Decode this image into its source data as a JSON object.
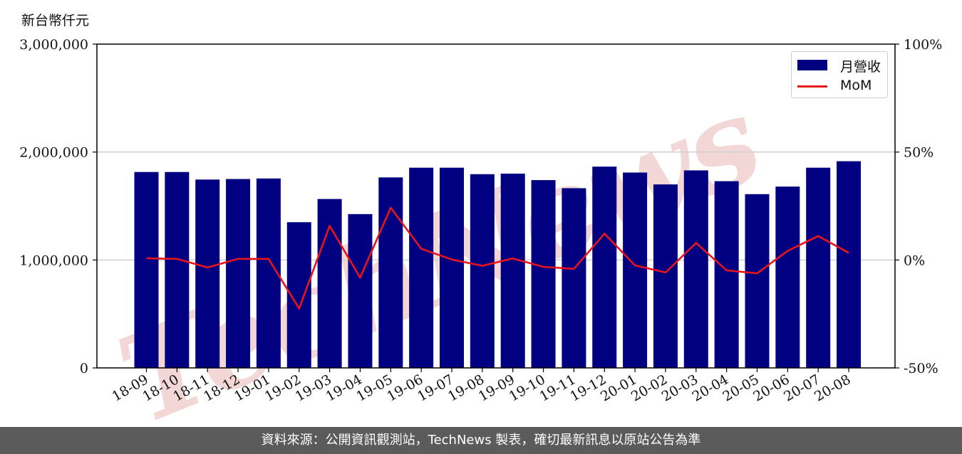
{
  "unit_label": "新台幣仟元",
  "footer": "資料來源：公開資訊觀測站，TechNews 製表，確切最新訊息以原站公告為準",
  "watermark": "TechNews",
  "colors": {
    "bar": "#000080",
    "line": "#e8141c",
    "footer_bg": "#5b5b5b",
    "watermark": "#f3d6d6"
  },
  "chart_data": {
    "type": "bar",
    "categories": [
      "18-09",
      "18-10",
      "18-11",
      "18-12",
      "19-01",
      "19-02",
      "19-03",
      "19-04",
      "19-05",
      "19-06",
      "19-07",
      "19-08",
      "19-09",
      "19-10",
      "19-11",
      "19-12",
      "20-01",
      "20-02",
      "20-03",
      "20-04",
      "20-05",
      "20-06",
      "20-07",
      "20-08"
    ],
    "series": [
      {
        "name": "月營收",
        "type": "bar",
        "axis": "left",
        "values": [
          1815000,
          1815000,
          1745000,
          1750000,
          1755000,
          1350000,
          1565000,
          1425000,
          1765000,
          1855000,
          1855000,
          1795000,
          1800000,
          1740000,
          1665000,
          1865000,
          1810000,
          1700000,
          1830000,
          1730000,
          1610000,
          1680000,
          1855000,
          1915000
        ]
      },
      {
        "name": "MoM",
        "type": "line",
        "axis": "right",
        "unit": "%",
        "values": [
          0.8,
          0.5,
          -3.5,
          0.5,
          0.5,
          -22.5,
          15.8,
          -8.2,
          24.2,
          5.2,
          0.2,
          -2.7,
          0.7,
          -3.2,
          -4.1,
          12.2,
          -2.5,
          -5.8,
          7.9,
          -4.8,
          -6.2,
          4.2,
          11.1,
          3.3
        ]
      }
    ],
    "left_axis": {
      "ylim": [
        0,
        3000000
      ],
      "ticks": [
        "0",
        "1,000,000",
        "2,000,000",
        "3,000,000"
      ],
      "tick_values": [
        0,
        1000000,
        2000000,
        3000000
      ]
    },
    "right_axis": {
      "ylim": [
        -50,
        100
      ],
      "ticks": [
        "-50%",
        "0%",
        "50%",
        "100%"
      ],
      "tick_values": [
        -50,
        0,
        50,
        100
      ]
    },
    "grid": "horizontal",
    "legend": {
      "placement": "top-right",
      "entries": [
        "月營收",
        "MoM"
      ]
    }
  }
}
